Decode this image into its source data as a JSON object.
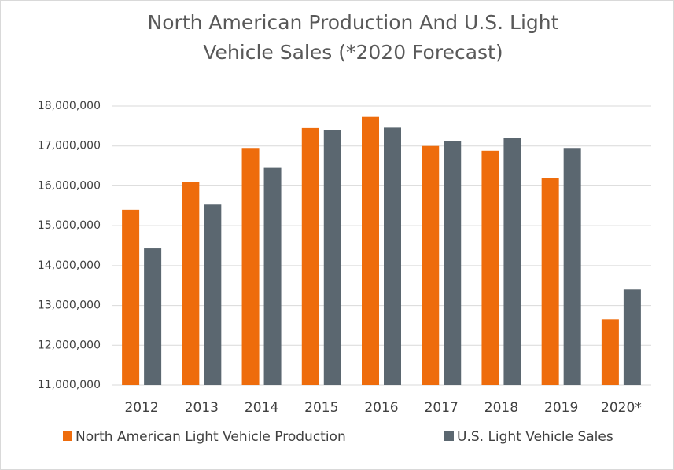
{
  "chart_data": {
    "type": "bar",
    "title": [
      "North American Production And U.S. Light",
      "Vehicle Sales (*2020 Forecast)"
    ],
    "categories": [
      "2012",
      "2013",
      "2014",
      "2015",
      "2016",
      "2017",
      "2018",
      "2019",
      "2020*"
    ],
    "series": [
      {
        "name": "North American Light Vehicle Production",
        "color": "#ee6c0c",
        "values": [
          15400000,
          16100000,
          16950000,
          17450000,
          17730000,
          17000000,
          16880000,
          16200000,
          12650000
        ]
      },
      {
        "name": "U.S. Light Vehicle Sales",
        "color": "#5b6770",
        "values": [
          14430000,
          15530000,
          16450000,
          17400000,
          17460000,
          17130000,
          17210000,
          16950000,
          13400000
        ]
      }
    ],
    "ylim": [
      11000000,
      18000000
    ],
    "yticks": [
      {
        "value": 11000000,
        "label": "11,000,000"
      },
      {
        "value": 12000000,
        "label": "12,000,000"
      },
      {
        "value": 13000000,
        "label": "13,000,000"
      },
      {
        "value": 14000000,
        "label": "14,000,000"
      },
      {
        "value": 15000000,
        "label": "15,000,000"
      },
      {
        "value": 16000000,
        "label": "16,000,000"
      },
      {
        "value": 17000000,
        "label": "17,000,000"
      },
      {
        "value": 18000000,
        "label": "18,000,000"
      }
    ],
    "grid": true,
    "legend": "bottom"
  }
}
